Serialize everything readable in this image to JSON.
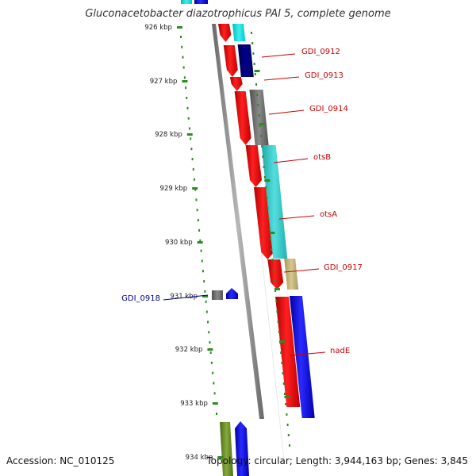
{
  "title": "Gluconacetobacter diazotrophicus PAI 5, complete genome",
  "accession": "Accession: NC_010125",
  "summary": "Topology: circular; Length: 3,944,163 bp; Genes: 3,845",
  "colors": {
    "tick": "#2e8b22",
    "gene_label": "#cc0000",
    "gene_label_alt": "#00008b",
    "backbone": "#808080"
  },
  "ticks": [
    "926 kbp",
    "927 kbp",
    "928 kbp",
    "929 kbp",
    "930 kbp",
    "931 kbp",
    "932 kbp",
    "933 kbp",
    "934 kbp"
  ],
  "gene_labels": [
    {
      "text": "GDI_0912",
      "color": "#cc0000"
    },
    {
      "text": "GDI_0913",
      "color": "#cc0000"
    },
    {
      "text": "GDI_0914",
      "color": "#cc0000"
    },
    {
      "text": "otsB",
      "color": "#cc0000"
    },
    {
      "text": "otsA",
      "color": "#cc0000"
    },
    {
      "text": "GDI_0917",
      "color": "#cc0000"
    },
    {
      "text": "GDI_0918",
      "color": "#00008b"
    },
    {
      "text": "nadE",
      "color": "#cc0000"
    }
  ],
  "features": {
    "red": "#ff0000",
    "blue": "#0000ff",
    "navy": "#000080",
    "cyan": "#00e5e5",
    "teal": "#33cccc",
    "gray": "#707070",
    "tan": "#c8b878",
    "olive": "#6b8e23"
  }
}
